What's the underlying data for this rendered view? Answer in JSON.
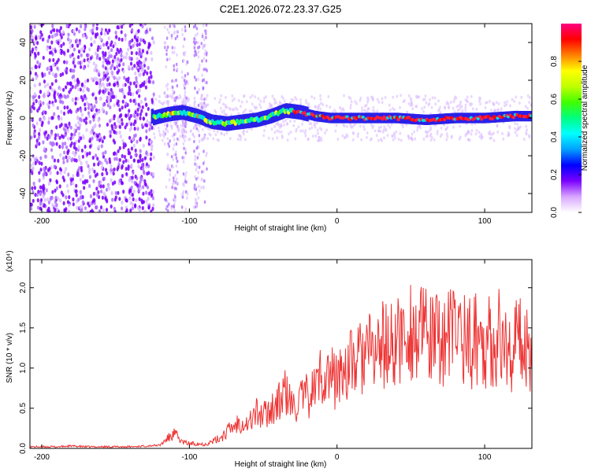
{
  "title": "C2E1.2026.072.23.37.G25",
  "chart_data": [
    {
      "type": "heatmap",
      "xlabel": "Height of straight line (km)",
      "ylabel": "Frequency (Hz)",
      "xlim": [
        -208,
        132
      ],
      "ylim": [
        -50,
        50
      ],
      "xticks": [
        -200,
        -100,
        0,
        100
      ],
      "yticks": [
        -40,
        -20,
        0,
        20,
        40
      ],
      "grid": false,
      "ridge": {
        "x": [
          -125,
          -115,
          -105,
          -95,
          -85,
          -75,
          -65,
          -55,
          -45,
          -35,
          -25,
          -15,
          -5,
          5,
          20,
          40,
          60,
          80,
          100,
          120,
          130
        ],
        "y": [
          0,
          2,
          3,
          1,
          -2,
          -3,
          -2,
          -1,
          1,
          4,
          3,
          1,
          0,
          0,
          0,
          0,
          -1,
          0,
          0,
          1,
          1
        ]
      },
      "colorbar": {
        "label": "Normalized spectral amplitude",
        "range": [
          0,
          1
        ],
        "ticks": [
          "0.0",
          "0.2",
          "0.4",
          "0.6",
          "0.8"
        ],
        "colors": [
          "#ffffff",
          "#d9a6ff",
          "#7a00ff",
          "#0000ff",
          "#00a0ff",
          "#00ffff",
          "#00ff80",
          "#40ff00",
          "#c0ff00",
          "#ffff00",
          "#ff8000",
          "#ff0000",
          "#ff0080"
        ]
      }
    },
    {
      "type": "line",
      "xlabel": "Height of straight line (km)",
      "ylabel": "SNR (10 * v/v)",
      "multiplier": "(x10⁴)",
      "xlim": [
        -208,
        132
      ],
      "ylim": [
        0,
        2.35
      ],
      "xticks": [
        -200,
        -100,
        0,
        100
      ],
      "yticks": [
        "0.0",
        "0.5",
        "1.0",
        "1.5",
        "2.0"
      ],
      "grid": false,
      "series": [
        {
          "color": "#ee3333",
          "x": [
            -208,
            -200,
            -190,
            -180,
            -170,
            -160,
            -150,
            -140,
            -130,
            -120,
            -115,
            -110,
            -105,
            -100,
            -95,
            -90,
            -85,
            -80,
            -75,
            -70,
            -65,
            -60,
            -55,
            -50,
            -45,
            -40,
            -35,
            -30,
            -25,
            -20,
            -15,
            -10,
            -5,
            0,
            5,
            10,
            15,
            20,
            25,
            30,
            35,
            40,
            45,
            50,
            55,
            60,
            65,
            70,
            75,
            80,
            85,
            90,
            95,
            100,
            105,
            110,
            115,
            120,
            125,
            130
          ],
          "y": [
            0.02,
            0.02,
            0.02,
            0.03,
            0.02,
            0.02,
            0.02,
            0.02,
            0.03,
            0.04,
            0.12,
            0.18,
            0.08,
            0.06,
            0.06,
            0.05,
            0.08,
            0.12,
            0.2,
            0.28,
            0.35,
            0.3,
            0.45,
            0.4,
            0.5,
            0.55,
            0.7,
            0.5,
            0.6,
            0.65,
            0.75,
            0.95,
            0.9,
            0.85,
            1.0,
            1.05,
            1.1,
            1.2,
            1.15,
            1.3,
            1.25,
            1.3,
            1.4,
            1.5,
            1.35,
            1.45,
            1.3,
            1.4,
            1.35,
            1.5,
            1.45,
            1.3,
            1.4,
            1.35,
            1.3,
            1.4,
            1.2,
            1.3,
            1.35,
            1.25
          ]
        }
      ]
    }
  ]
}
